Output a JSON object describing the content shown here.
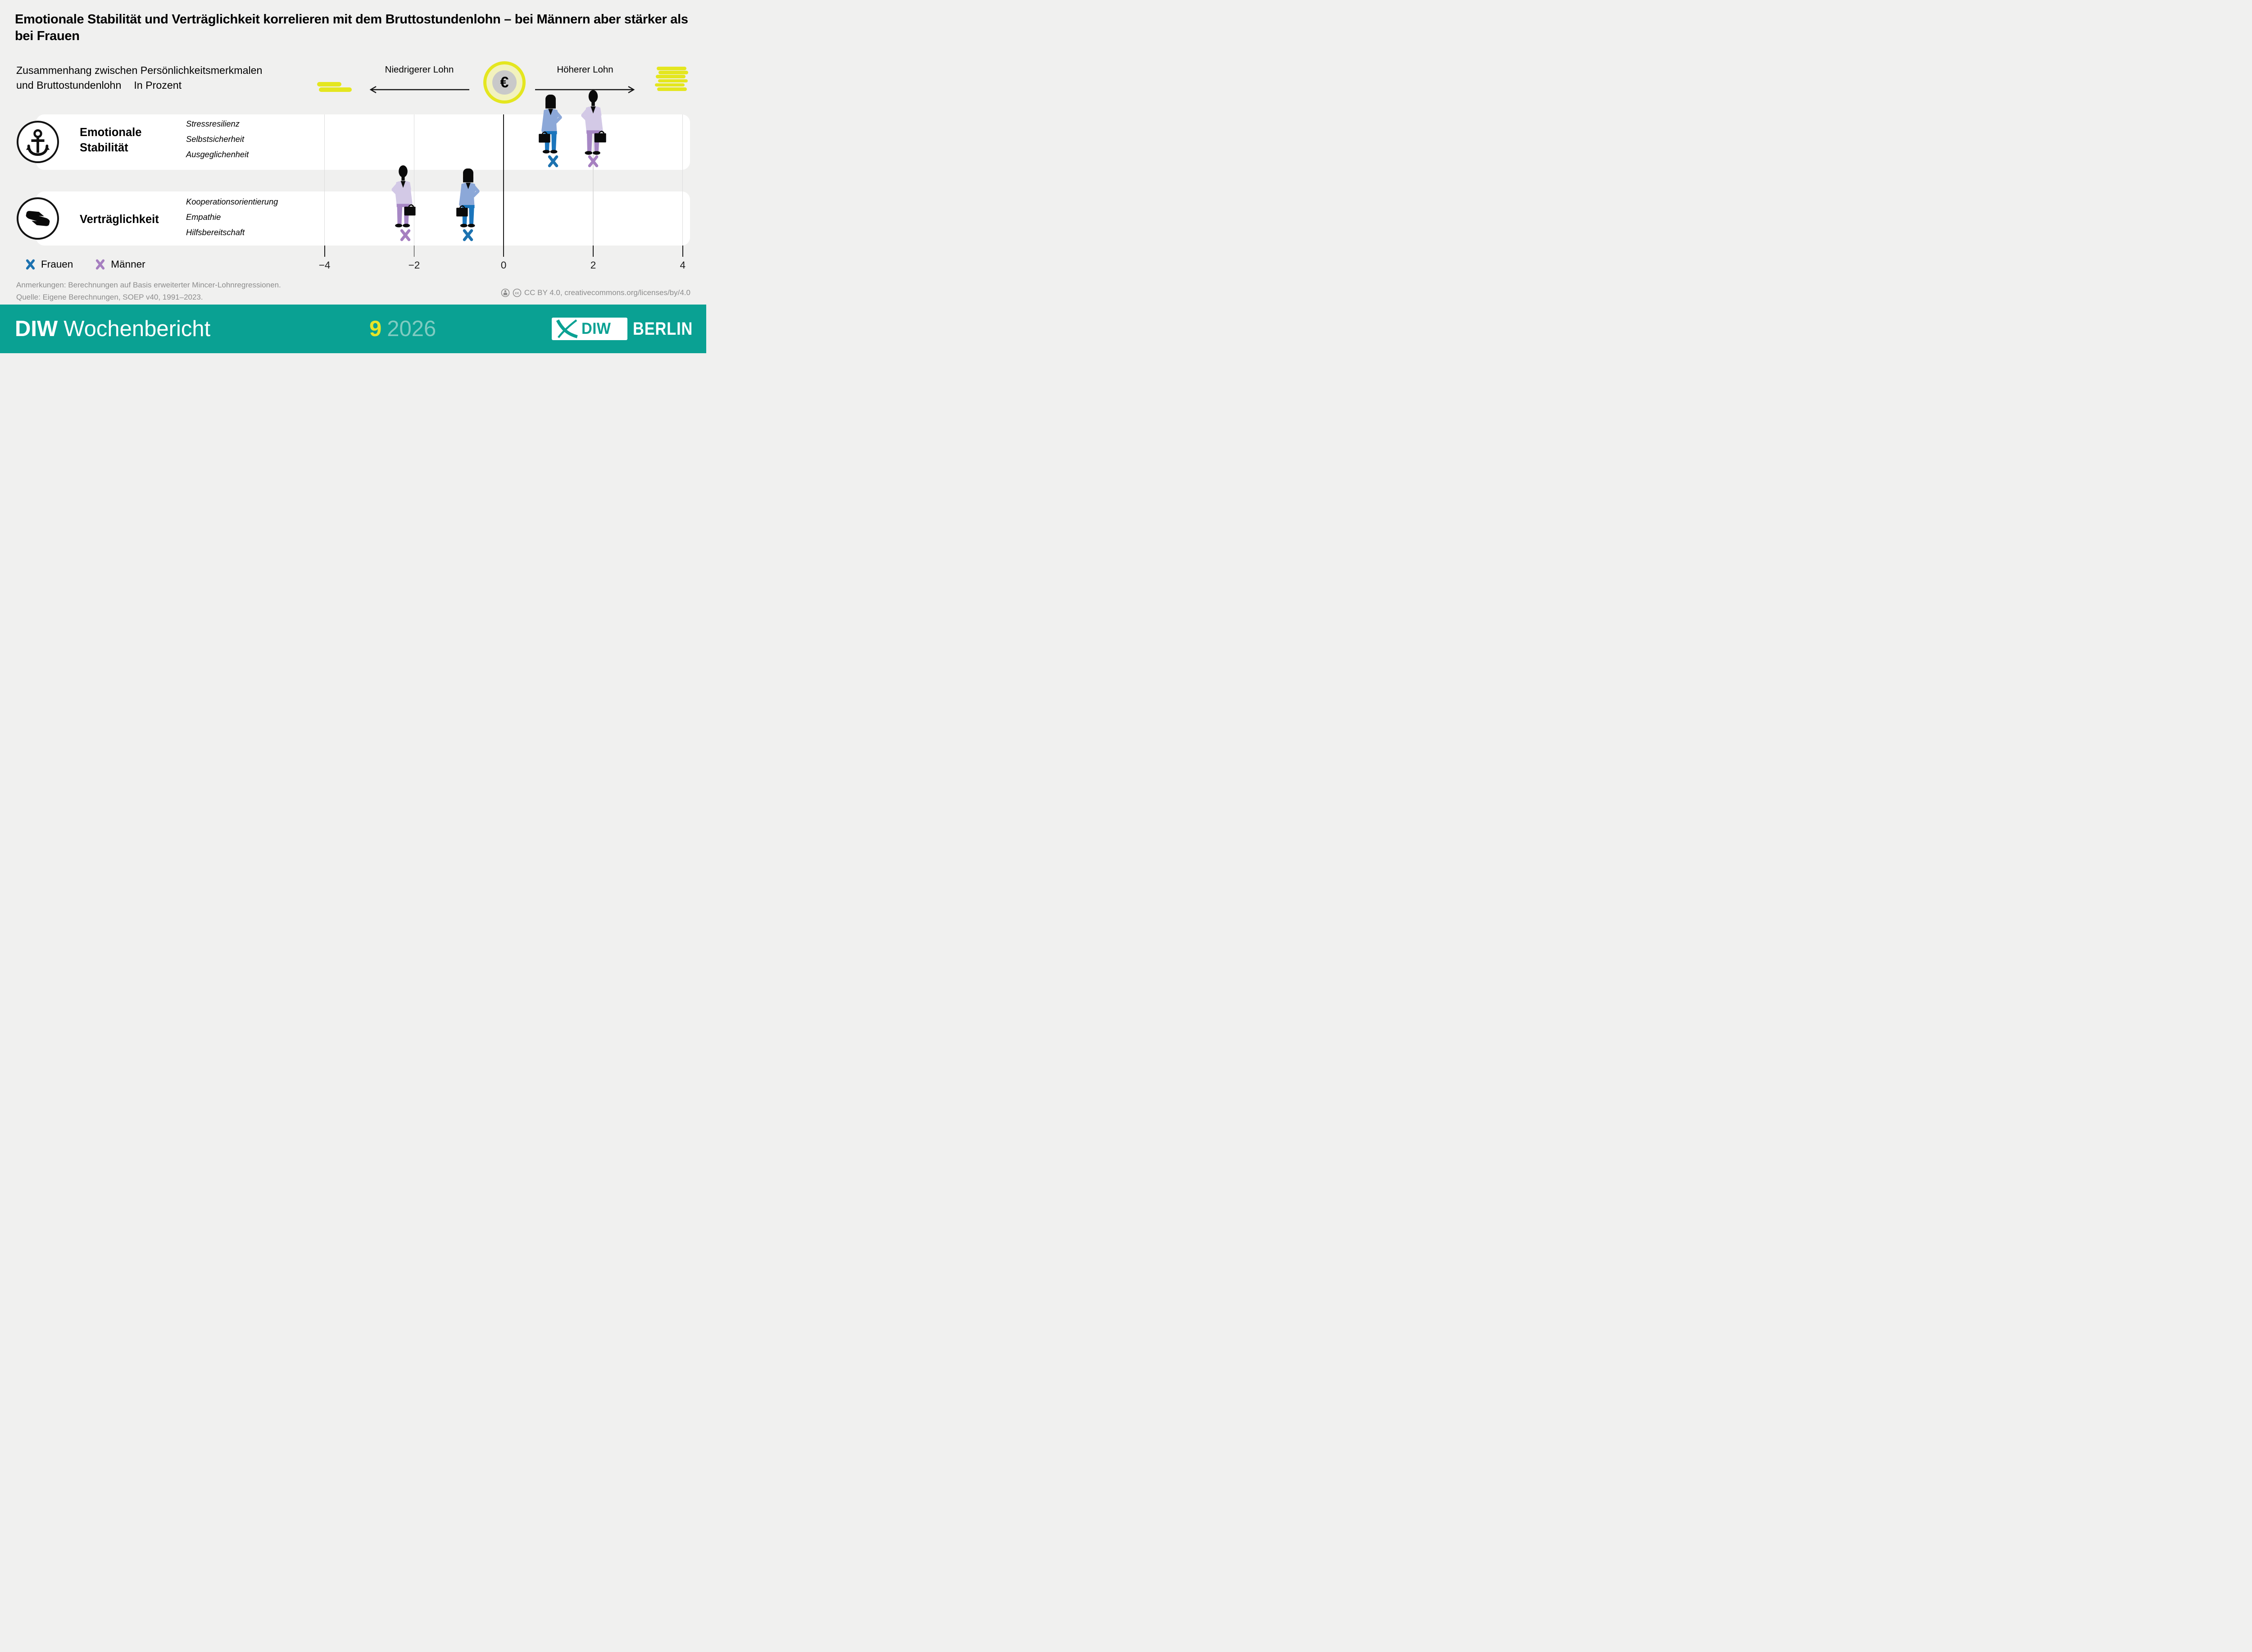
{
  "header": {
    "title": "Emotionale Stabilität und Verträglichkeit korrelieren mit dem Bruttostundenlohn – bei Männern aber stärker als bei Frauen"
  },
  "subtitle": {
    "line1": "Zusammenhang zwischen Persönlichkeitsmerkmalen",
    "line2": "und Bruttostundenlohn",
    "unit_label": "In Prozent"
  },
  "axis_header": {
    "left_label": "Niedrigerer Lohn",
    "right_label": "Höherer Lohn",
    "euro_symbol": "€"
  },
  "chart_data": {
    "type": "scatter",
    "title": "Zusammenhang zwischen Persönlichkeitsmerkmalen und Bruttostundenlohn",
    "units": "In Prozent",
    "x_axis": {
      "min": -4,
      "max": 4,
      "ticks": [
        -4,
        -2,
        0,
        2,
        4
      ],
      "tick_labels": [
        "−4",
        "−2",
        "0",
        "2",
        "4"
      ],
      "zero_line": true,
      "grid": true
    },
    "rows": [
      {
        "label": "Emotionale Stabilität",
        "icon": "anchor-icon",
        "traits": [
          "Stressresilienz",
          "Selbstsicherheit",
          "Ausgeglichenheit"
        ],
        "points": [
          {
            "group": "Frauen",
            "value": 1.1
          },
          {
            "group": "Männer",
            "value": 2.0
          }
        ]
      },
      {
        "label": "Verträglichkeit",
        "icon": "hands-icon",
        "traits": [
          "Kooperationsorientierung",
          "Empathie",
          "Hilfsbereitschaft"
        ],
        "points": [
          {
            "group": "Männer",
            "value": -2.2
          },
          {
            "group": "Frauen",
            "value": -0.8
          }
        ]
      }
    ],
    "legend": [
      {
        "label": "Frauen",
        "color": "#1C72B0"
      },
      {
        "label": "Männer",
        "color": "#A67FC0"
      }
    ]
  },
  "figures": {
    "woman": {
      "top": "#8CA8D8",
      "bottom": "#1B75BC"
    },
    "man": {
      "top": "#D3C9E6",
      "bottom": "#A788C5"
    }
  },
  "notes": {
    "line1": "Anmerkungen: Berechnungen auf Basis erweiterter Mincer-Lohnregressionen.",
    "line2": "Quelle: Eigene Berechnungen, SOEP v40, 1991–2023."
  },
  "license": {
    "text": "CC BY 4.0, creativecommons.org/licenses/by/4.0"
  },
  "footer": {
    "brand_bold": "DIW",
    "brand_regular": "Wochenbericht",
    "issue_number": "9",
    "issue_year": "2026",
    "logo_text": "DIW",
    "logo_suffix": "BERLIN"
  },
  "colors": {
    "background": "#F0F0EF",
    "band_white": "#FFFFFF",
    "accent_yellow": "#E4E61F",
    "footer_teal": "#0AA193",
    "year_teal": "#7FCBC1",
    "issue_yellow": "#E6E428",
    "frauen_blue": "#1C72B0",
    "maenner_purple": "#A67FC0",
    "notes_gray": "#8C8C8C"
  }
}
